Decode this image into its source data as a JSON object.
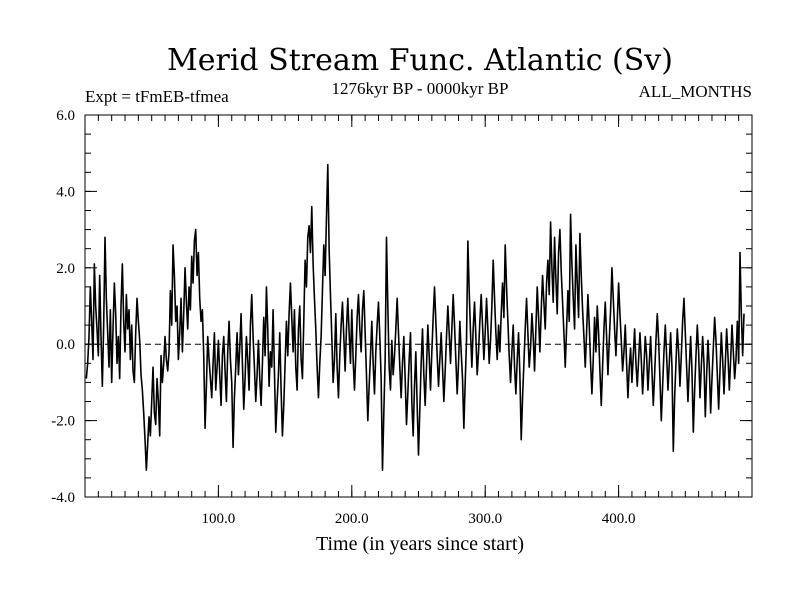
{
  "chart_data": {
    "type": "line",
    "title": "Merid Stream Func. Atlantic (Sv)",
    "subtitle_left": "Expt = tFmEB-tfmea",
    "subtitle_center": "1276kyr BP - 0000kyr BP",
    "subtitle_right": "ALL_MONTHS",
    "xlabel": "Time (in years since start)",
    "ylabel": "",
    "xlim": [
      0,
      500
    ],
    "ylim": [
      -4.0,
      6.0
    ],
    "x_major_ticks": [
      100,
      200,
      300,
      400
    ],
    "x_tick_labels": [
      "100.0",
      "200.0",
      "300.0",
      "400.0"
    ],
    "x_minor_step": 10,
    "y_major_ticks": [
      -4.0,
      -2.0,
      0.0,
      2.0,
      4.0,
      6.0
    ],
    "y_tick_labels": [
      "-4.0",
      "-2.0",
      "0.0",
      "2.0",
      "4.0",
      "6.0"
    ],
    "y_minor_step": 0.5,
    "zero_line": {
      "value": 0.0,
      "style": "dashed"
    },
    "line_color": "#000000",
    "series": [
      {
        "name": "Merid Stream Func. Atlantic",
        "x_start": 1,
        "x_step": 1,
        "values": [
          -0.9,
          -0.5,
          0.2,
          1.5,
          0.6,
          -0.4,
          2.1,
          1.0,
          0.4,
          -0.3,
          1.8,
          0.2,
          -1.1,
          0.5,
          2.8,
          1.2,
          0.3,
          -0.6,
          0.9,
          -1.0,
          0.4,
          1.6,
          0.8,
          -0.5,
          0.2,
          -0.9,
          1.0,
          2.1,
          0.6,
          -0.2,
          1.3,
          0.4,
          0.9,
          -0.4,
          0.5,
          -0.7,
          -1.0,
          0.3,
          1.2,
          0.6,
          0.1,
          -0.8,
          -1.2,
          -1.8,
          -2.5,
          -3.3,
          -2.6,
          -1.9,
          -2.4,
          -1.5,
          -0.6,
          -1.8,
          -2.1,
          -0.9,
          -1.5,
          -2.4,
          -0.3,
          -1.0,
          -0.5,
          0.2,
          -0.4,
          -0.7,
          -0.2,
          1.4,
          0.5,
          2.6,
          1.8,
          0.6,
          1.0,
          -0.4,
          0.3,
          1.2,
          -0.2,
          0.8,
          2.0,
          1.1,
          0.4,
          1.5,
          0.9,
          2.3,
          1.6,
          2.7,
          3.0,
          1.8,
          2.4,
          1.2,
          0.6,
          0.9,
          -0.3,
          -2.2,
          -1.1,
          0.2,
          -0.4,
          -0.9,
          -1.4,
          -0.5,
          0.3,
          -1.2,
          -0.6,
          0.1,
          -0.8,
          -1.6,
          -0.3,
          0.2,
          -0.7,
          -1.5,
          -0.2,
          0.6,
          -0.4,
          -1.0,
          -2.7,
          -1.4,
          -0.6,
          0.3,
          -0.8,
          -0.1,
          0.8,
          -0.5,
          -1.7,
          -0.9,
          0.2,
          -0.4,
          -1.2,
          0.5,
          1.3,
          0.2,
          -0.6,
          -1.5,
          -0.8,
          0.1,
          -0.9,
          -1.6,
          -0.5,
          0.7,
          -0.3,
          1.5,
          0.4,
          -1.1,
          -0.2,
          -0.6,
          0.9,
          -0.7,
          -2.3,
          -1.5,
          -0.8,
          0.3,
          -1.2,
          -2.4,
          -1.6,
          -0.5,
          0.6,
          -0.3,
          0.8,
          1.6,
          0.7,
          -0.2,
          0.9,
          -0.6,
          -1.2,
          0.4,
          1.0,
          -0.4,
          -0.9,
          0.6,
          2.2,
          1.5,
          2.8,
          3.1,
          2.4,
          3.6,
          2.1,
          1.2,
          0.4,
          -0.6,
          -1.4,
          -0.5,
          0.2,
          1.4,
          2.6,
          1.8,
          3.3,
          4.7,
          2.5,
          1.3,
          0.2,
          -1.0,
          -0.4,
          0.8,
          -0.6,
          -1.4,
          -0.3,
          0.5,
          1.1,
          0.2,
          -0.7,
          0.4,
          1.2,
          0.3,
          -0.5,
          0.9,
          -0.4,
          -1.2,
          -0.3,
          0.7,
          1.3,
          0.4,
          -0.2,
          0.9,
          1.4,
          0.3,
          -0.8,
          -2.0,
          -1.1,
          -0.3,
          0.6,
          -0.5,
          -1.3,
          -0.2,
          0.5,
          1.1,
          0.2,
          -0.9,
          -3.3,
          -1.8,
          -0.4,
          2.8,
          1.0,
          -0.6,
          -1.2,
          0.1,
          -0.8,
          -0.3,
          0.4,
          1.2,
          0.3,
          -0.6,
          -1.4,
          -0.5,
          0.2,
          -0.9,
          -2.1,
          -1.3,
          -0.4,
          0.3,
          -1.5,
          -2.4,
          -1.1,
          -0.2,
          -1.6,
          -2.9,
          -1.7,
          -0.5,
          0.4,
          -0.8,
          -1.6,
          -0.6,
          0.5,
          -0.3,
          -1.2,
          -0.2,
          0.7,
          1.5,
          0.6,
          -0.3,
          -1.1,
          -0.4,
          0.3,
          -0.6,
          -1.5,
          -0.7,
          0.2,
          1.0,
          0.3,
          -0.5,
          0.4,
          1.3,
          0.5,
          -0.4,
          -1.3,
          -0.5,
          0.6,
          -0.2,
          -0.9,
          -2.2,
          -1.0,
          0.1,
          2.7,
          1.4,
          0.3,
          -0.6,
          0.4,
          1.1,
          0.2,
          -0.8,
          -0.2,
          0.6,
          1.3,
          0.5,
          -0.4,
          0.3,
          1.2,
          0.4,
          -0.5,
          0.1,
          1.0,
          2.2,
          1.2,
          0.3,
          -0.4,
          0.5,
          -0.2,
          0.8,
          1.6,
          0.7,
          2.6,
          1.5,
          0.6,
          -0.3,
          -1.0,
          -0.2,
          0.5,
          -0.6,
          -1.3,
          -0.4,
          0.3,
          -0.8,
          -2.5,
          -1.4,
          -0.5,
          0.4,
          1.2,
          0.3,
          -0.6,
          -0.1,
          0.8,
          0.2,
          -0.7,
          0.4,
          1.5,
          0.7,
          -0.2,
          0.9,
          1.8,
          1.1,
          0.4,
          1.6,
          2.2,
          1.3,
          3.2,
          2.0,
          1.1,
          2.8,
          1.7,
          0.8,
          2.4,
          3.0,
          1.9,
          1.1,
          0.3,
          -0.6,
          0.4,
          1.4,
          0.6,
          3.4,
          2.1,
          1.2,
          0.4,
          2.6,
          1.6,
          0.7,
          2.9,
          1.8,
          0.9,
          0.2,
          -0.6,
          0.3,
          1.3,
          0.5,
          -0.5,
          -1.3,
          -0.4,
          0.7,
          -0.2,
          1.0,
          0.3,
          -0.7,
          -1.6,
          -0.6,
          0.4,
          1.1,
          0.2,
          -0.8,
          0.1,
          0.9,
          2.0,
          1.2,
          0.4,
          -0.3,
          0.6,
          1.6,
          0.8,
          0.1,
          -0.7,
          -0.2,
          0.5,
          -0.5,
          -1.4,
          -0.6,
          -0.1,
          -1.0,
          -0.3,
          0.4,
          -0.5,
          -1.1,
          -0.4,
          0.3,
          -0.4,
          -1.3,
          -0.6,
          0.2,
          -0.3,
          -1.2,
          -0.5,
          0.2,
          -0.7,
          -1.6,
          -0.8,
          0.1,
          0.8,
          0.1,
          -0.9,
          -2.0,
          -1.1,
          -0.2,
          0.5,
          -0.3,
          -1.2,
          -0.5,
          0.3,
          -0.6,
          -2.8,
          -1.4,
          -0.5,
          0.4,
          -0.2,
          -1.1,
          -0.3,
          0.6,
          1.2,
          0.3,
          -0.6,
          -1.5,
          -0.6,
          0.2,
          -0.7,
          -2.3,
          -1.2,
          -0.3,
          0.5,
          -0.2,
          -1.4,
          -0.6,
          0.2,
          -0.5,
          -1.9,
          -0.8,
          0.1,
          -0.6,
          -1.8,
          -0.9,
          -0.1,
          0.7,
          0.1,
          -0.8,
          -1.7,
          -0.7,
          0.3,
          -0.4,
          -1.3,
          -0.5,
          0.4,
          -0.3,
          -1.2,
          -0.4,
          0.5,
          -0.2,
          -0.9,
          -0.4,
          0.6,
          -0.5,
          2.4,
          0.8,
          -0.3,
          0.8
        ]
      }
    ]
  }
}
